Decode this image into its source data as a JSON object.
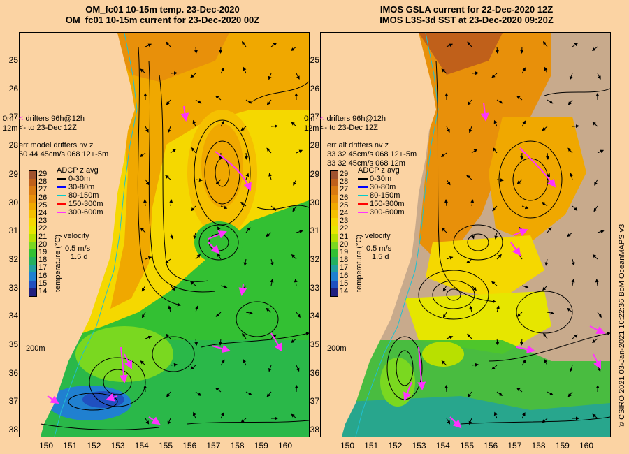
{
  "titles": {
    "left_line1": "OM_fc01 10-15m temp. 23-Dec-2020",
    "left_line2": "OM_fc01 10-15m current for 23-Dec-2020 00Z",
    "right_line1": "IMOS GSLA current for 22-Dec-2020 12Z",
    "right_line2": "IMOS L3S-3d SST at 23-Dec-2020 09:20Z"
  },
  "axes": {
    "lat_labels": [
      "25",
      "26",
      "27",
      "28",
      "29",
      "30",
      "31",
      "32",
      "33",
      "34",
      "35",
      "36",
      "37",
      "38"
    ],
    "lon_labels": [
      "150",
      "151",
      "152",
      "153",
      "154",
      "155",
      "156",
      "157",
      "158",
      "159",
      "160"
    ]
  },
  "left_overlay": {
    "drifter_line1": "drifters 96h@12h",
    "drifter_line2": "to 23-Dec 12Z",
    "label_0m": "0m",
    "label_12m": "12m",
    "err_title": "err model drifters nv z",
    "err_values": "60 44 45cm/s 068 12+-5m",
    "depth_200m": "200m"
  },
  "right_overlay": {
    "drifter_line1": "drifters 96h@12h",
    "drifter_line2": "to 23-Dec 12Z",
    "label_0m": "0m",
    "label_12m": "12m",
    "err_title": "err alt drifters nv z",
    "err_values1": "33 32 45cm/s 068 12+-5m",
    "err_values2": "33 32 45cm/s 068 12m",
    "depth_200m": "200m"
  },
  "legend": {
    "title": "ADCP z avg",
    "items": [
      {
        "label": "0-30m",
        "color": "#000000"
      },
      {
        "label": "30-80m",
        "color": "#0000ff"
      },
      {
        "label": "80-150m",
        "color": "#00cccc"
      },
      {
        "label": "150-300m",
        "color": "#ff0000"
      },
      {
        "label": "300-600m",
        "color": "#ff33ff"
      }
    ],
    "velocity_title": "velocity",
    "velocity_scale": "0.5 m/s",
    "velocity_days": "1.5 d"
  },
  "colorbar": {
    "title": "temperature (°C)",
    "ticks": [
      "29",
      "28",
      "27",
      "26",
      "25",
      "24",
      "23",
      "22",
      "21",
      "20",
      "19",
      "18",
      "17",
      "16",
      "15",
      "14"
    ],
    "colors": [
      "#a0522d",
      "#c0601a",
      "#d97a10",
      "#e8900a",
      "#f0a800",
      "#f5c000",
      "#f5d800",
      "#e6e600",
      "#b8e000",
      "#7ad820",
      "#33c033",
      "#22b060",
      "#20a0a0",
      "#2080d0",
      "#2050c0",
      "#202080"
    ]
  },
  "colors": {
    "land": "#fbd3a3",
    "drifter": "#ff33ff",
    "cloud_mask": "#c8aa8c"
  },
  "credit": "© CSIRO 2021   03-Jan-2021 10:22:36 BoM OceanMAPS v3"
}
